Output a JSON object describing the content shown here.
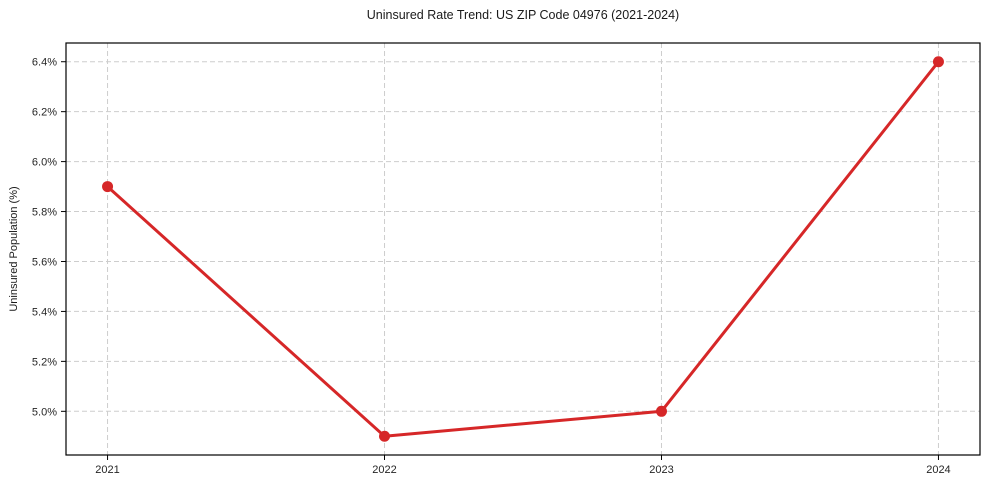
{
  "chart_data": {
    "type": "line",
    "title": "Uninsured Rate Trend: US ZIP Code 04976 (2021-2024)",
    "xlabel": "",
    "ylabel": "Uninsured Population (%)",
    "x": [
      2021,
      2022,
      2023,
      2024
    ],
    "values": [
      5.9,
      4.9,
      5.0,
      6.4
    ],
    "series_name": "uninsured-rate",
    "xlim": [
      2020.85,
      2024.15
    ],
    "ylim": [
      4.825,
      6.475
    ],
    "xticks": [
      2021,
      2022,
      2023,
      2024
    ],
    "xtick_labels": [
      "2021",
      "2022",
      "2023",
      "2024"
    ],
    "yticks": [
      5.0,
      5.2,
      5.4,
      5.6,
      5.8,
      6.0,
      6.2,
      6.4
    ],
    "ytick_labels": [
      "5.0%",
      "5.2%",
      "5.4%",
      "5.6%",
      "5.8%",
      "6.0%",
      "6.2%",
      "6.4%"
    ],
    "grid": true,
    "legend": "none",
    "line_color": "#d62728",
    "marker_color": "#d62728",
    "grid_color": "#cdcdcd",
    "spine_color": "#000000",
    "background": "#ffffff"
  }
}
